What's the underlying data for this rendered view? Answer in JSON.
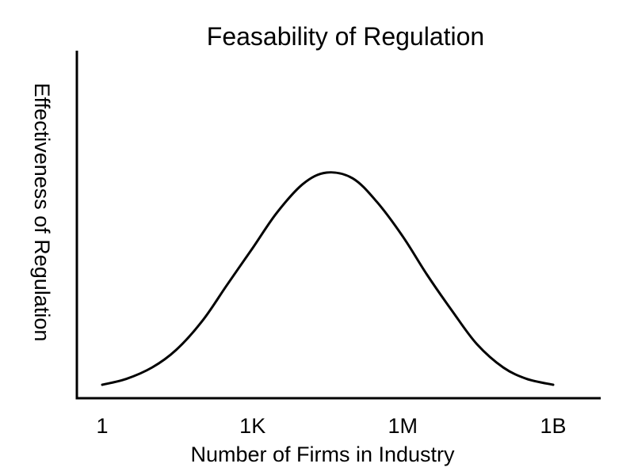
{
  "chart_data": {
    "type": "line",
    "title": "Feasability of Regulation",
    "xlabel": "Number of Firms in Industry",
    "ylabel": "Effectiveness of Regulation",
    "x_scale": "log",
    "x_ticks": [
      {
        "value": 1,
        "label": "1"
      },
      {
        "value": 1000,
        "label": "1K"
      },
      {
        "value": 1000000,
        "label": "1M"
      },
      {
        "value": 1000000000,
        "label": "1B"
      }
    ],
    "xlim": [
      1,
      1000000000
    ],
    "ylim": [
      0,
      1
    ],
    "grid": false,
    "legend": "none",
    "series": [
      {
        "x": [
          1,
          3,
          10,
          30,
          100,
          300,
          1000,
          3000,
          10000,
          30000,
          100000,
          300000,
          1000000,
          3000000,
          10000000,
          30000000,
          100000000,
          300000000,
          1000000000
        ],
        "y": [
          0.0,
          0.02,
          0.06,
          0.12,
          0.22,
          0.34,
          0.47,
          0.59,
          0.69,
          0.73,
          0.71,
          0.63,
          0.51,
          0.38,
          0.25,
          0.14,
          0.06,
          0.02,
          0.0
        ]
      }
    ]
  }
}
